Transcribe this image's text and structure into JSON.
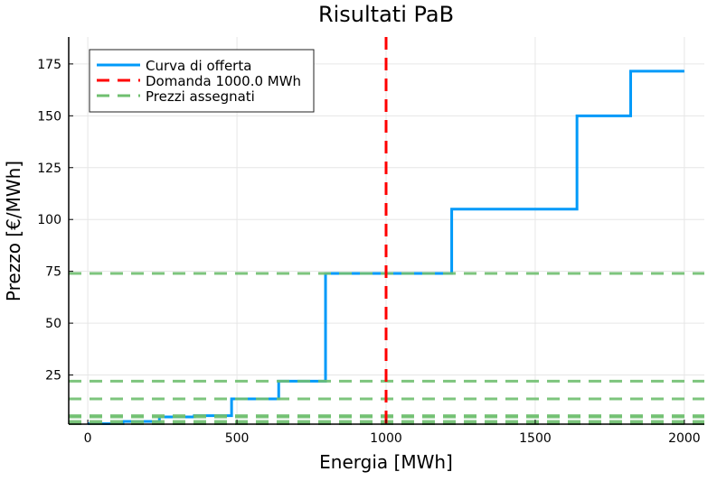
{
  "chart_data": {
    "type": "line",
    "title": "Risultati PaB",
    "xlabel": "Energia [MWh]",
    "ylabel": "Prezzo [€/MWh]",
    "xlim": [
      -64,
      2067
    ],
    "ylim": [
      1.3,
      188
    ],
    "xticks": [
      0,
      500,
      1000,
      1500,
      2000
    ],
    "yticks": [
      25,
      50,
      75,
      100,
      125,
      150,
      175
    ],
    "grid": true,
    "legend_position": "top-left",
    "series": [
      {
        "name": "Curva di offerta",
        "kind": "step",
        "color": "#009af9",
        "x": [
          0,
          118,
          118,
          240,
          240,
          357,
          357,
          482,
          482,
          640,
          640,
          797,
          797,
          1220,
          1220,
          1640,
          1640,
          1820,
          1820,
          2000
        ],
        "y": [
          1.5,
          1.5,
          2.6,
          2.6,
          4.8,
          4.8,
          5.4,
          5.4,
          13.5,
          13.5,
          22,
          22,
          74,
          74,
          105,
          105,
          150,
          150,
          171.5,
          171.5
        ]
      },
      {
        "name": "Domanda 1000.0 MWh",
        "kind": "vline",
        "color": "#ff0000",
        "x": 1000
      },
      {
        "name": "Prezzi assegnati",
        "kind": "hlines",
        "color": "#6fbf6f",
        "y": [
          1.5,
          2.6,
          4.8,
          5.4,
          13.5,
          22,
          74
        ]
      }
    ]
  }
}
